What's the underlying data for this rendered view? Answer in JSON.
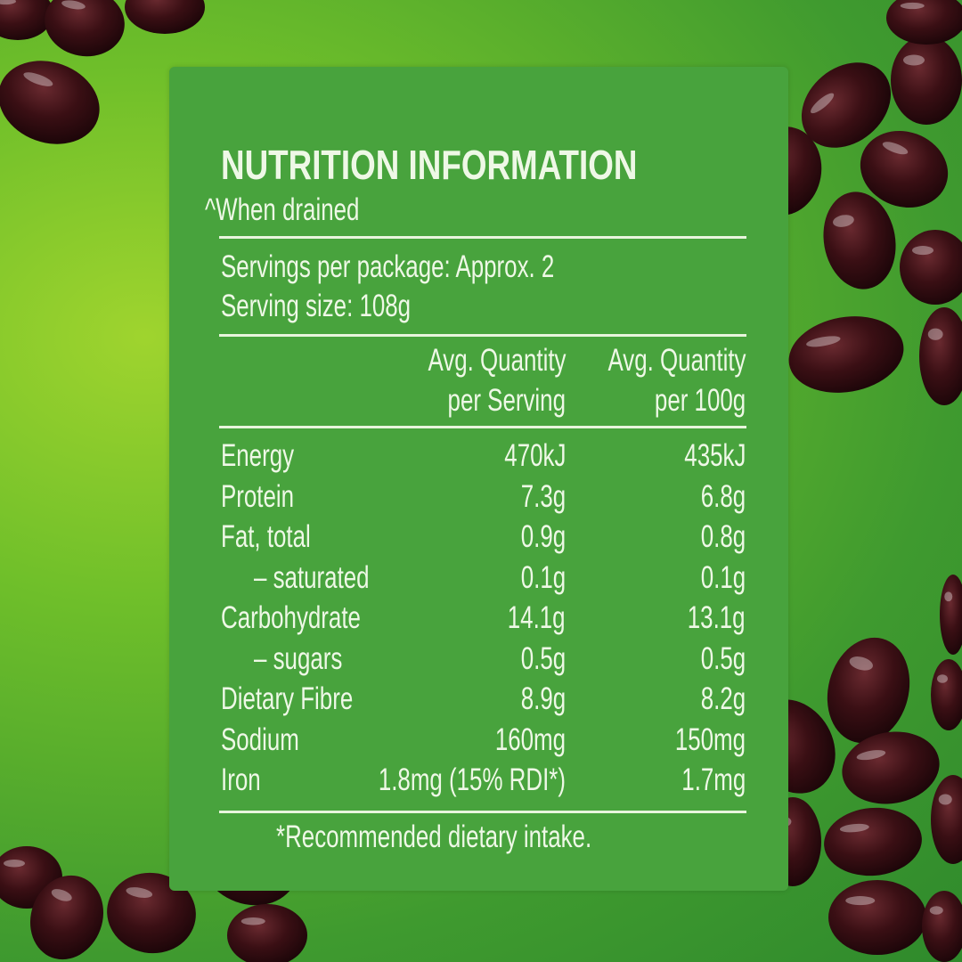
{
  "label": {
    "title": "NUTRITION INFORMATION",
    "note": "^When drained",
    "servings_per_package": "Servings per package: Approx. 2",
    "serving_size": "Serving size: 108g",
    "columns": [
      {
        "line1": "Avg. Quantity",
        "line2": "per Serving"
      },
      {
        "line1": "Avg. Quantity",
        "line2": "per 100g"
      }
    ],
    "rows": [
      {
        "name": "Energy",
        "per_serving": "470kJ",
        "per_100g": "435kJ"
      },
      {
        "name": "Protein",
        "per_serving": "7.3g",
        "per_100g": "6.8g"
      },
      {
        "name": "Fat, total",
        "per_serving": "0.9g",
        "per_100g": "0.8g"
      },
      {
        "name": "– saturated",
        "per_serving": "0.1g",
        "per_100g": "0.1g"
      },
      {
        "name": "Carbohydrate",
        "per_serving": "14.1g",
        "per_100g": "13.1g"
      },
      {
        "name": "– sugars",
        "per_serving": "0.5g",
        "per_100g": "0.5g"
      },
      {
        "name": "Dietary Fibre",
        "per_serving": "8.9g",
        "per_100g": "8.2g"
      },
      {
        "name": "Sodium",
        "per_serving": "160mg",
        "per_100g": "150mg"
      },
      {
        "name": "Iron",
        "per_serving": "1.8mg (15% RDI*)",
        "per_100g": "1.7mg"
      }
    ],
    "footnote": "*Recommended dietary intake."
  },
  "colors": {
    "panel": "#48a33d",
    "text": "#eef8e6",
    "bean": "#3a0f14"
  }
}
